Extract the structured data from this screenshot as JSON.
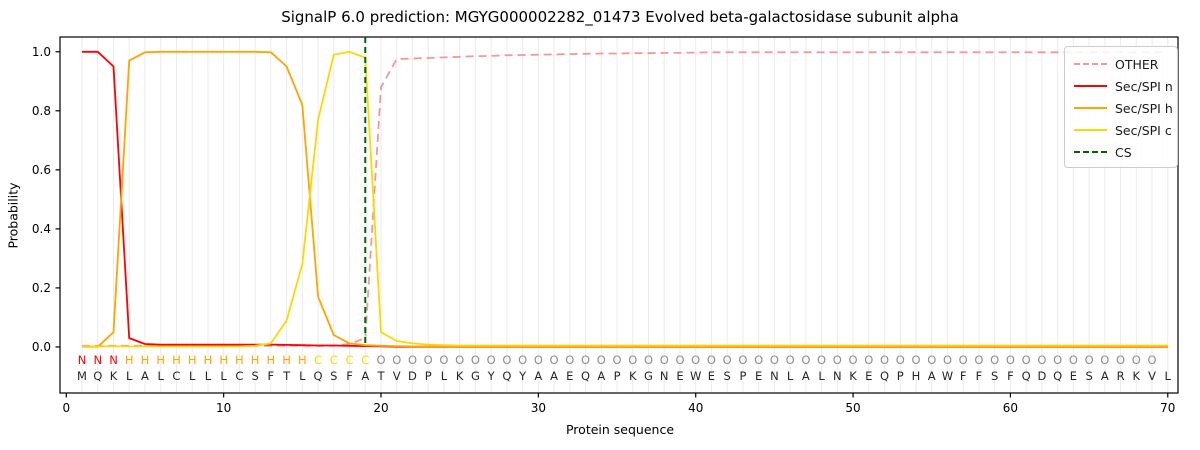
{
  "title": "SignalP 6.0 prediction: MGYG000002282_01473 Evolved beta-galactosidase subunit alpha",
  "chart_data": {
    "type": "line",
    "title": "SignalP 6.0 prediction: MGYG000002282_01473 Evolved beta-galactosidase subunit alpha",
    "xlabel": "Protein sequence",
    "ylabel": "Probability",
    "xticks": [
      0,
      10,
      20,
      30,
      40,
      50,
      60,
      70
    ],
    "yticks": [
      0.0,
      0.2,
      0.4,
      0.6,
      0.8,
      1.0
    ],
    "xlim": [
      -0.4,
      70.65
    ],
    "ylim": [
      -0.156,
      1.05
    ],
    "grid": "vertical line at every residue, light gray",
    "legend_position": "upper right",
    "x_positions": "residues 1-70",
    "series": [
      {
        "name": "OTHER",
        "color": "#f19999",
        "dash": true,
        "values": [
          0.004,
          0.004,
          0.004,
          0.004,
          0.004,
          0.004,
          0.004,
          0.004,
          0.004,
          0.004,
          0.004,
          0.004,
          0.004,
          0.004,
          0.004,
          0.004,
          0.004,
          0.01,
          0.03,
          0.88,
          0.975,
          0.977,
          0.979,
          0.981,
          0.983,
          0.985,
          0.986,
          0.988,
          0.989,
          0.99,
          0.991,
          0.992,
          0.993,
          0.994,
          0.994,
          0.995,
          0.995,
          0.996,
          0.996,
          0.997,
          0.998,
          0.998,
          0.998,
          0.998,
          0.998,
          0.998,
          0.998,
          0.998,
          0.998,
          0.998,
          0.998,
          0.998,
          0.998,
          0.998,
          0.998,
          0.998,
          0.998,
          0.998,
          0.998,
          0.998,
          0.998,
          0.998,
          0.998,
          0.998,
          0.998,
          0.998,
          0.998,
          0.998,
          0.998,
          0.998
        ]
      },
      {
        "name": "Sec/SPI n",
        "color": "#ff0000",
        "dash": false,
        "values": [
          1.0,
          1.0,
          0.95,
          0.03,
          0.01,
          0.008,
          0.008,
          0.008,
          0.008,
          0.008,
          0.008,
          0.008,
          0.008,
          0.007,
          0.006,
          0.005,
          0.005,
          0.004,
          0.003,
          0.002,
          0.001,
          0.001,
          0.001,
          0.001,
          0.001,
          0.001,
          0.001,
          0.001,
          0.001,
          0.001,
          0.001,
          0.001,
          0.001,
          0.001,
          0.001,
          0.001,
          0.001,
          0.001,
          0.001,
          0.001,
          0.001,
          0.001,
          0.001,
          0.001,
          0.001,
          0.001,
          0.001,
          0.001,
          0.001,
          0.001,
          0.001,
          0.001,
          0.001,
          0.001,
          0.001,
          0.001,
          0.001,
          0.001,
          0.001,
          0.001,
          0.001,
          0.001,
          0.001,
          0.001,
          0.001,
          0.001,
          0.001,
          0.001,
          0.001,
          0.001
        ]
      },
      {
        "name": "Sec/SPI h",
        "color": "#ffa500",
        "dash": false,
        "values": [
          0.001,
          0.001,
          0.05,
          0.97,
          0.998,
          1.0,
          1.0,
          1.0,
          1.0,
          1.0,
          1.0,
          1.0,
          0.998,
          0.95,
          0.82,
          0.17,
          0.04,
          0.012,
          0.006,
          0.004,
          0.003,
          0.002,
          0.002,
          0.002,
          0.002,
          0.002,
          0.002,
          0.002,
          0.002,
          0.002,
          0.002,
          0.002,
          0.002,
          0.002,
          0.002,
          0.002,
          0.002,
          0.002,
          0.002,
          0.002,
          0.002,
          0.002,
          0.002,
          0.002,
          0.002,
          0.002,
          0.002,
          0.002,
          0.002,
          0.002,
          0.002,
          0.002,
          0.002,
          0.002,
          0.002,
          0.002,
          0.002,
          0.002,
          0.002,
          0.002,
          0.002,
          0.002,
          0.002,
          0.002,
          0.002,
          0.002,
          0.002,
          0.002,
          0.002,
          0.002
        ]
      },
      {
        "name": "Sec/SPI c",
        "color": "#ffd700",
        "dash": false,
        "values": [
          0.002,
          0.002,
          0.002,
          0.002,
          0.002,
          0.002,
          0.002,
          0.002,
          0.002,
          0.002,
          0.002,
          0.004,
          0.012,
          0.09,
          0.28,
          0.77,
          0.99,
          1.0,
          0.98,
          0.05,
          0.02,
          0.012,
          0.008,
          0.006,
          0.005,
          0.005,
          0.005,
          0.005,
          0.005,
          0.005,
          0.005,
          0.005,
          0.005,
          0.005,
          0.005,
          0.005,
          0.005,
          0.005,
          0.005,
          0.005,
          0.005,
          0.005,
          0.005,
          0.005,
          0.005,
          0.005,
          0.005,
          0.005,
          0.005,
          0.005,
          0.005,
          0.005,
          0.005,
          0.005,
          0.005,
          0.005,
          0.005,
          0.005,
          0.005,
          0.005,
          0.005,
          0.005,
          0.005,
          0.005,
          0.005,
          0.005,
          0.005,
          0.005,
          0.005,
          0.005
        ]
      }
    ],
    "cs_line": {
      "name": "CS",
      "color": "#006400",
      "dash": true,
      "position": 19
    },
    "sequence": "MQKLALCLLLCSFTLQSFATVDPLKGYQYAAEQAPKGNEWESPENLALNKEQPHAWFFSFQDQESARKVL",
    "region_labels": "NNNHHHHHHHHHHHHCCCCOOOOOOOOOOOOOOOOOOOOOOOOOOOOOOOOOOOOOOOOOOOOOOOOOO",
    "region_colors": {
      "N": "#ff0000",
      "H": "#ffa500",
      "C": "#ffd700",
      "O": "#8c8c8c"
    },
    "sequence_color": "#262626",
    "legend": [
      {
        "label": "OTHER",
        "color": "#f19999",
        "dash": true
      },
      {
        "label": "Sec/SPI n",
        "color": "#ff0000",
        "dash": false
      },
      {
        "label": "Sec/SPI h",
        "color": "#ffa500",
        "dash": false
      },
      {
        "label": "Sec/SPI c",
        "color": "#ffd700",
        "dash": false
      },
      {
        "label": "CS",
        "color": "#006400",
        "dash": true
      }
    ]
  }
}
